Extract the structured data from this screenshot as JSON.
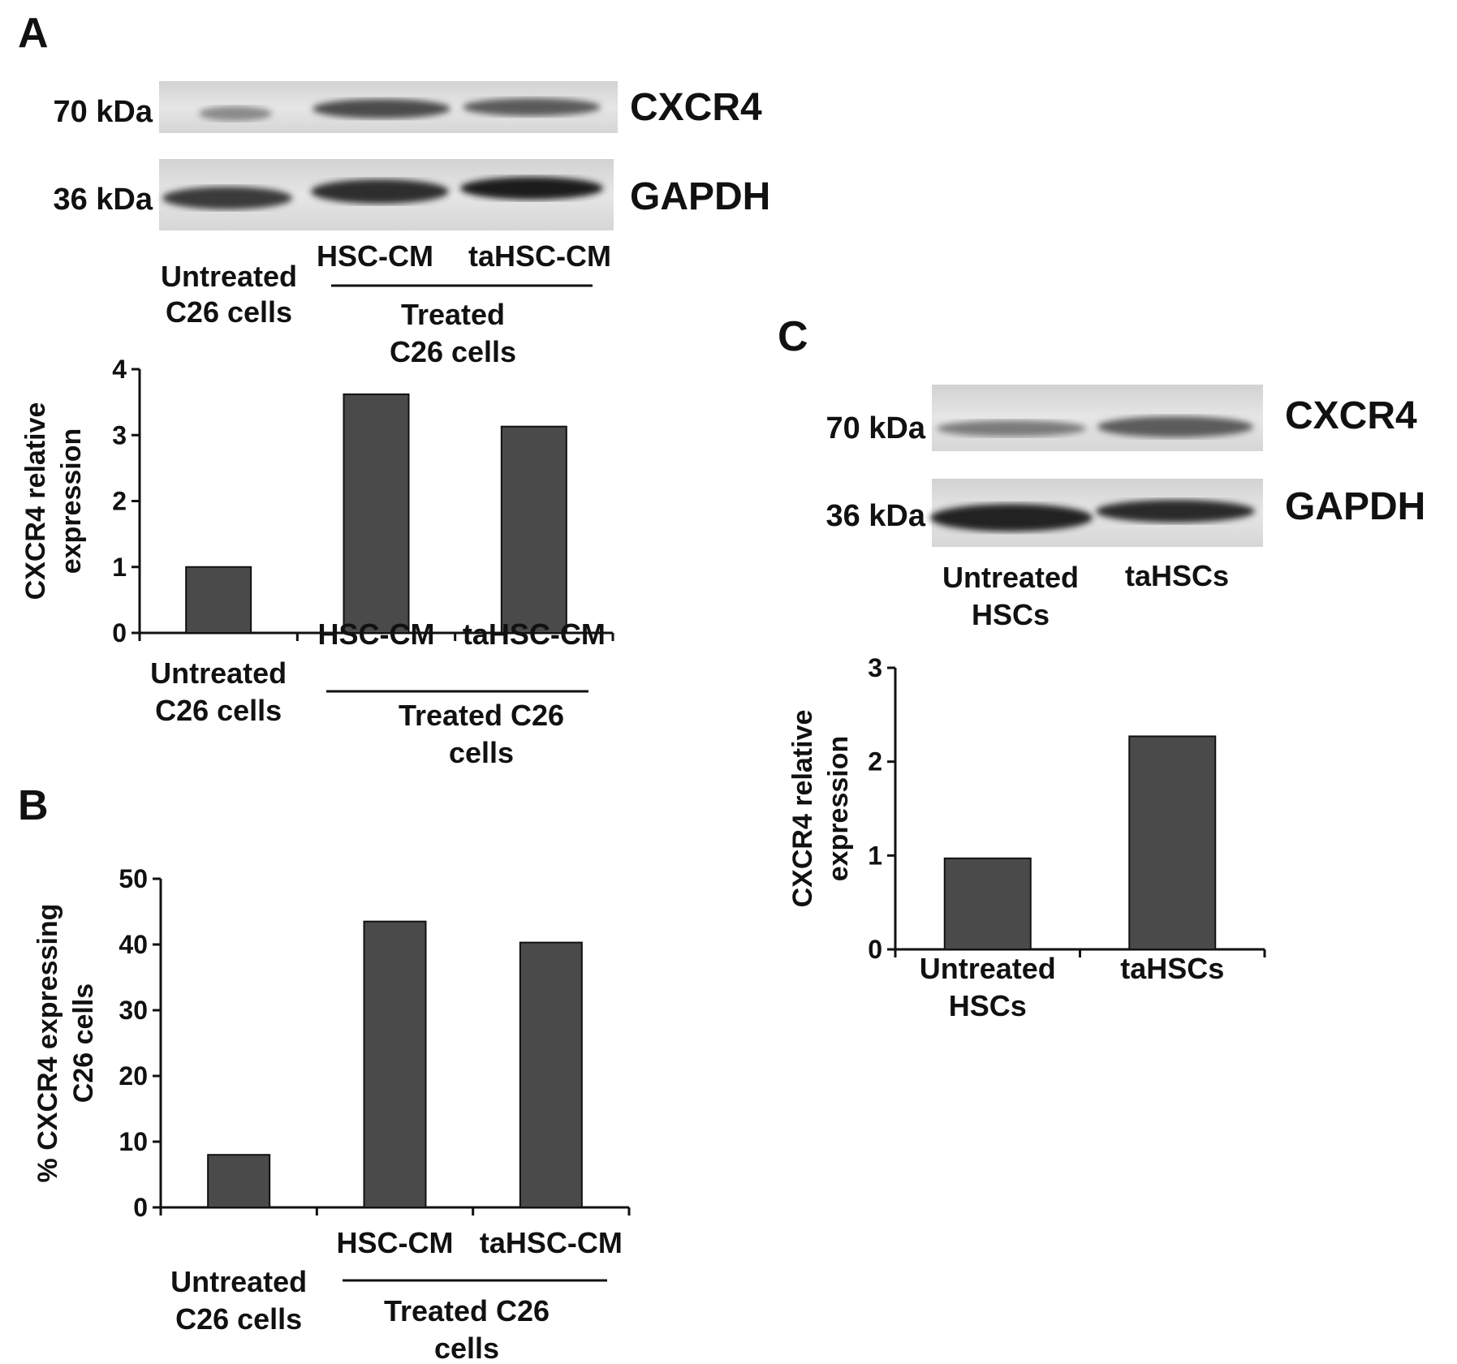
{
  "panels": [
    {
      "id": "A",
      "label": "A",
      "blot": {
        "rows": [
          {
            "mw": "70 kDa",
            "protein": "CXCR4"
          },
          {
            "mw": "36 kDa",
            "protein": "GAPDH"
          }
        ],
        "lanes": [
          "Untreated\nC26 cells",
          "HSC-CM",
          "taHSC-CM"
        ],
        "group": "Treated\nC26 cells"
      },
      "chart_data": {
        "type": "bar",
        "categories": [
          "Untreated\nC26 cells",
          "HSC-CM",
          "taHSC-CM"
        ],
        "values": [
          1.0,
          3.62,
          3.13
        ],
        "ylabel": "CXCR4 relative\nexpression",
        "ylim": [
          0,
          4
        ],
        "yticks": [
          0,
          1,
          2,
          3,
          4
        ],
        "group_label": "Treated C26\ncells",
        "bar_color": "#4a4a4a"
      }
    },
    {
      "id": "B",
      "label": "B",
      "chart_data": {
        "type": "bar",
        "categories": [
          "Untreated\nC26 cells",
          "HSC-CM",
          "taHSC-CM"
        ],
        "values": [
          8,
          43.5,
          40.3
        ],
        "ylabel": "% CXCR4 expressing\nC26 cells",
        "ylim": [
          0,
          50
        ],
        "yticks": [
          0,
          10,
          20,
          30,
          40,
          50
        ],
        "group_label": "Treated C26\ncells",
        "bar_color": "#4a4a4a"
      }
    },
    {
      "id": "C",
      "label": "C",
      "blot": {
        "rows": [
          {
            "mw": "70 kDa",
            "protein": "CXCR4"
          },
          {
            "mw": "36 kDa",
            "protein": "GAPDH"
          }
        ],
        "lanes": [
          "Untreated\nHSCs",
          "taHSCs"
        ]
      },
      "chart_data": {
        "type": "bar",
        "categories": [
          "Untreated\nHSCs",
          "taHSCs"
        ],
        "values": [
          0.97,
          2.27
        ],
        "ylabel": "CXCR4 relative\nexpression",
        "ylim": [
          0,
          3
        ],
        "yticks": [
          0,
          1,
          2,
          3
        ],
        "bar_color": "#4a4a4a"
      }
    }
  ]
}
